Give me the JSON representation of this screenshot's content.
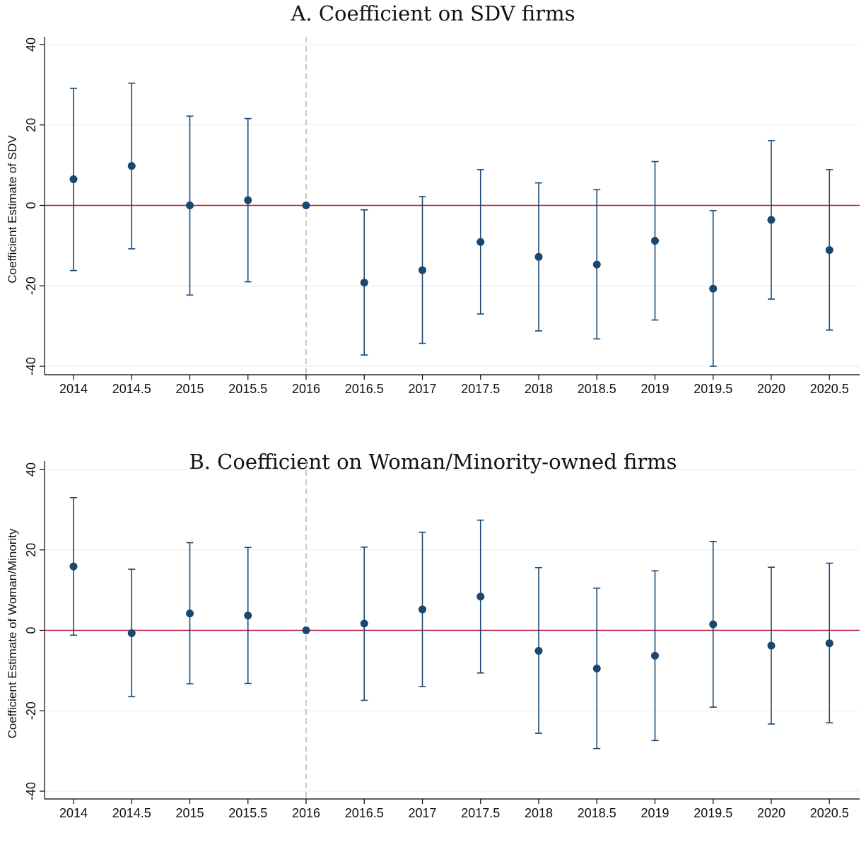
{
  "chart_data": [
    {
      "type": "scatter",
      "title": "A. Coefficient on SDV firms",
      "xlabel": "",
      "ylabel": "Coefficient Estimate of SDV",
      "xlim": [
        2013.85,
        2020.75
      ],
      "ylim": [
        -42.5,
        42
      ],
      "x_ticks": [
        "2014",
        "2014.5",
        "2015",
        "2015.5",
        "2016",
        "2016.5",
        "2017",
        "2017.5",
        "2018",
        "2018.5",
        "2019",
        "2019.5",
        "2020",
        "2020.5"
      ],
      "y_ticks": [
        "-40",
        "-20",
        "0",
        "20",
        "40"
      ],
      "y_tick_values": [
        -40,
        -20,
        0,
        20,
        40
      ],
      "reference_line_y": 0,
      "event_line_x": 2016,
      "grid": true,
      "marker_color": "#1a476f",
      "zero_line_color": "#b0163f",
      "event_line_color": "#bbbbbb",
      "series": [
        {
          "x": [
            2014,
            2014.5,
            2015,
            2015.5,
            2016,
            2016.5,
            2017,
            2017.5,
            2018,
            2018.5,
            2019,
            2019.5,
            2020,
            2020.5
          ],
          "values": [
            6.5,
            9.8,
            0,
            1.3,
            0,
            -19.2,
            -16.1,
            -9.1,
            -12.8,
            -14.7,
            -8.8,
            -20.7,
            -3.6,
            -11.1
          ],
          "ci_low": [
            -16.2,
            -10.8,
            -22.3,
            -19.0,
            0,
            -37.2,
            -34.3,
            -27.0,
            -31.2,
            -33.2,
            -28.5,
            -40.0,
            -23.3,
            -31.0
          ],
          "ci_high": [
            29.1,
            30.4,
            22.2,
            21.6,
            0,
            -1.1,
            2.2,
            8.9,
            5.6,
            3.9,
            10.9,
            -1.3,
            16.1,
            8.9
          ]
        }
      ]
    },
    {
      "type": "scatter",
      "title": "B. Coefficient on Woman/Minority-owned firms",
      "xlabel": "",
      "ylabel": "Coefficient Estimate of Woman/Minority",
      "xlim": [
        2013.85,
        2020.75
      ],
      "ylim": [
        -41.5,
        41.5
      ],
      "x_ticks": [
        "2014",
        "2014.5",
        "2015",
        "2015.5",
        "2016",
        "2016.5",
        "2017",
        "2017.5",
        "2018",
        "2018.5",
        "2019",
        "2019.5",
        "2020",
        "2020.5"
      ],
      "y_ticks": [
        "-40",
        "-20",
        "0",
        "20",
        "40"
      ],
      "y_tick_values": [
        -40,
        -20,
        0,
        20,
        40
      ],
      "reference_line_y": 0,
      "event_line_x": 2016,
      "grid": true,
      "marker_color": "#1a476f",
      "zero_line_color": "#b0163f",
      "event_line_color": "#bbbbbb",
      "series": [
        {
          "x": [
            2014,
            2014.5,
            2015,
            2015.5,
            2016,
            2016.5,
            2017,
            2017.5,
            2018,
            2018.5,
            2019,
            2019.5,
            2020,
            2020.5
          ],
          "values": [
            15.9,
            -0.7,
            4.2,
            3.7,
            0,
            1.7,
            5.2,
            8.4,
            -5.1,
            -9.5,
            -6.3,
            1.5,
            -3.8,
            -3.2
          ],
          "ci_low": [
            -1.2,
            -16.5,
            -13.3,
            -13.2,
            0,
            -17.4,
            -14.0,
            -10.6,
            -25.6,
            -29.4,
            -27.4,
            -19.1,
            -23.3,
            -23.0
          ],
          "ci_high": [
            33.0,
            15.2,
            21.8,
            20.6,
            0,
            20.7,
            24.4,
            27.4,
            15.6,
            10.5,
            14.8,
            22.1,
            15.7,
            16.7
          ]
        }
      ]
    }
  ]
}
